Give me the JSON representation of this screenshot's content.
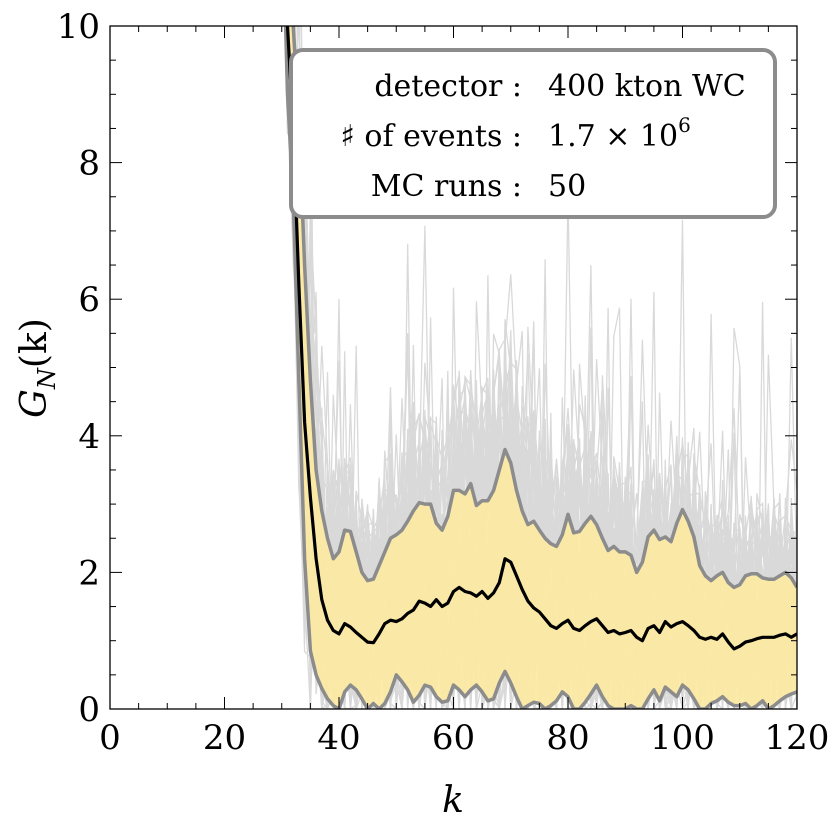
{
  "chart_data": {
    "type": "line",
    "title": "",
    "xlabel": "k",
    "ylabel": "G",
    "ylabel_sub": "N",
    "ylabel_arg": "(k)",
    "xlim": [
      0,
      120
    ],
    "ylim": [
      0,
      10
    ],
    "x_ticks": [
      0,
      20,
      40,
      60,
      80,
      100,
      120
    ],
    "y_ticks": [
      0,
      2,
      4,
      6,
      8,
      10
    ],
    "grid": false,
    "legend": {
      "placement": "top-right",
      "rows": [
        {
          "label": "detector :",
          "value": "400 kton  WC"
        },
        {
          "label": "♯  of events :",
          "value": "1.7 × 10",
          "value_sup": "6"
        },
        {
          "label": "MC runs :",
          "value": "50"
        }
      ]
    },
    "colors": {
      "band_fill": "#fde9a3",
      "band_edge": "#8c8c8c",
      "mean_line": "#000000",
      "mc_runs": "#d9d9d9"
    },
    "x": [
      30,
      31,
      32,
      33,
      34,
      35,
      36,
      37,
      38,
      39,
      40,
      41,
      42,
      43,
      44,
      45,
      46,
      47,
      48,
      49,
      50,
      51,
      52,
      53,
      54,
      55,
      56,
      57,
      58,
      59,
      60,
      61,
      62,
      63,
      64,
      65,
      66,
      67,
      68,
      69,
      70,
      71,
      72,
      73,
      74,
      75,
      76,
      77,
      78,
      79,
      80,
      81,
      82,
      83,
      84,
      85,
      86,
      87,
      88,
      89,
      90,
      91,
      92,
      93,
      94,
      95,
      96,
      97,
      98,
      99,
      100,
      101,
      102,
      103,
      104,
      105,
      106,
      107,
      108,
      109,
      110,
      111,
      112,
      113,
      114,
      115,
      116,
      117,
      118,
      119,
      120
    ],
    "series": [
      {
        "role": "mean",
        "values": [
          12,
          10,
          8.5,
          6.2,
          4.2,
          3.1,
          2.2,
          1.6,
          1.3,
          1.15,
          1.1,
          1.25,
          1.2,
          1.12,
          1.05,
          0.98,
          0.97,
          1.1,
          1.25,
          1.3,
          1.28,
          1.32,
          1.4,
          1.45,
          1.58,
          1.55,
          1.5,
          1.6,
          1.5,
          1.55,
          1.72,
          1.78,
          1.72,
          1.7,
          1.65,
          1.72,
          1.62,
          1.7,
          1.85,
          2.2,
          2.15,
          1.95,
          1.75,
          1.58,
          1.48,
          1.42,
          1.32,
          1.22,
          1.18,
          1.25,
          1.3,
          1.18,
          1.15,
          1.22,
          1.28,
          1.32,
          1.22,
          1.12,
          1.15,
          1.1,
          1.12,
          1.15,
          1.05,
          1.0,
          1.18,
          1.22,
          1.12,
          1.28,
          1.2,
          1.25,
          1.28,
          1.22,
          1.15,
          1.05,
          1.02,
          1.05,
          1.02,
          1.1,
          0.98,
          0.88,
          0.92,
          0.98,
          1.0,
          1.03,
          1.05,
          1.05,
          1.05,
          1.08,
          1.1,
          1.05,
          1.1
        ]
      },
      {
        "role": "upper",
        "values": [
          12,
          11,
          10,
          8.6,
          6.5,
          4.8,
          3.5,
          2.9,
          2.5,
          2.2,
          2.3,
          2.62,
          2.6,
          2.3,
          2.0,
          1.88,
          1.9,
          2.1,
          2.3,
          2.5,
          2.55,
          2.62,
          2.75,
          2.9,
          3.02,
          3.0,
          3.0,
          2.72,
          2.62,
          2.82,
          3.2,
          3.2,
          3.15,
          3.3,
          2.98,
          3.05,
          3.05,
          3.2,
          3.5,
          3.8,
          3.6,
          3.2,
          2.9,
          2.7,
          2.75,
          2.62,
          2.5,
          2.42,
          2.38,
          2.55,
          2.85,
          2.58,
          2.6,
          2.72,
          2.82,
          2.7,
          2.5,
          2.32,
          2.38,
          2.3,
          2.3,
          2.25,
          2.0,
          2.15,
          2.52,
          2.62,
          2.48,
          2.52,
          2.45,
          2.72,
          2.92,
          2.75,
          2.52,
          2.1,
          1.95,
          1.88,
          1.95,
          2.0,
          1.85,
          1.78,
          1.82,
          1.95,
          1.98,
          1.98,
          1.92,
          1.9,
          1.9,
          1.95,
          2.0,
          1.92,
          1.78
        ]
      },
      {
        "role": "lower",
        "values": [
          12,
          9,
          7.5,
          4.8,
          2.2,
          0.85,
          0.5,
          0.3,
          0.15,
          0.05,
          0.0,
          0.25,
          0.35,
          0.28,
          0.15,
          0.0,
          0.08,
          0.0,
          0.08,
          0.25,
          0.5,
          0.4,
          0.28,
          0.1,
          0.2,
          0.35,
          0.32,
          0.18,
          0.1,
          0.12,
          0.35,
          0.28,
          0.18,
          0.28,
          0.35,
          0.25,
          0.12,
          0.15,
          0.38,
          0.55,
          0.38,
          0.18,
          0.0,
          0.05,
          0.1,
          0.08,
          0.0,
          0.05,
          0.12,
          0.25,
          0.18,
          0.0,
          0.0,
          0.1,
          0.22,
          0.35,
          0.18,
          0.05,
          0.0,
          0.0,
          0.0,
          0.05,
          0.0,
          0.0,
          0.15,
          0.28,
          0.12,
          0.32,
          0.25,
          0.18,
          0.35,
          0.28,
          0.15,
          0.0,
          0.0,
          0.08,
          0.12,
          0.18,
          0.1,
          0.05,
          0.05,
          0.08,
          0.0,
          0.05,
          0.12,
          0.0,
          0.05,
          0.12,
          0.18,
          0.22,
          0.25
        ]
      }
    ],
    "mc_runs_count": 50
  }
}
